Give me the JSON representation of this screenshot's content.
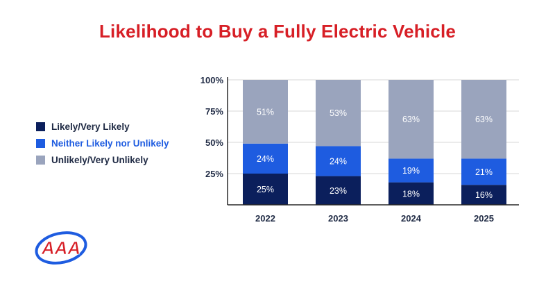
{
  "title": "Likelihood to Buy a Fully Electric Vehicle",
  "colors": {
    "title": "#d71f26",
    "text": "#1f2a44",
    "likely": "#0b1f5c",
    "neither": "#1e5ce0",
    "unlikely": "#9aa4bd",
    "bar_label": "#ffffff",
    "axis": "#2a2a2a",
    "grid": "#d7d7d7"
  },
  "legend": [
    {
      "label": "Likely/Very Likely",
      "color": "#0b1f5c",
      "text_color": "#1f2a44"
    },
    {
      "label": "Neither Likely nor Unlikely",
      "color": "#1e5ce0",
      "text_color": "#1e5ce0"
    },
    {
      "label": "Unlikely/Very Unlikely",
      "color": "#9aa4bd",
      "text_color": "#1f2a44"
    }
  ],
  "logo": {
    "text": "AAA"
  },
  "chart_data": {
    "type": "bar",
    "stacked": true,
    "title": "Likelihood to Buy a Fully Electric Vehicle",
    "categories": [
      "2022",
      "2023",
      "2024",
      "2025"
    ],
    "series": [
      {
        "name": "Likely/Very Likely",
        "values": [
          25,
          23,
          18,
          16
        ],
        "labels": [
          "25%",
          "23%",
          "18%",
          "16%"
        ],
        "color": "#0b1f5c"
      },
      {
        "name": "Neither Likely nor Unlikely",
        "values": [
          24,
          24,
          19,
          21
        ],
        "labels": [
          "24%",
          "24%",
          "19%",
          "21%"
        ],
        "color": "#1e5ce0"
      },
      {
        "name": "Unlikely/Very Unlikely",
        "values": [
          51,
          53,
          63,
          63
        ],
        "labels": [
          "51%",
          "53%",
          "63%",
          "63%"
        ],
        "color": "#9aa4bd"
      }
    ],
    "yticks": [
      "25%",
      "50%",
      "75%",
      "100%"
    ],
    "ylim": [
      0,
      100
    ],
    "grid": true,
    "legend_position": "left"
  }
}
